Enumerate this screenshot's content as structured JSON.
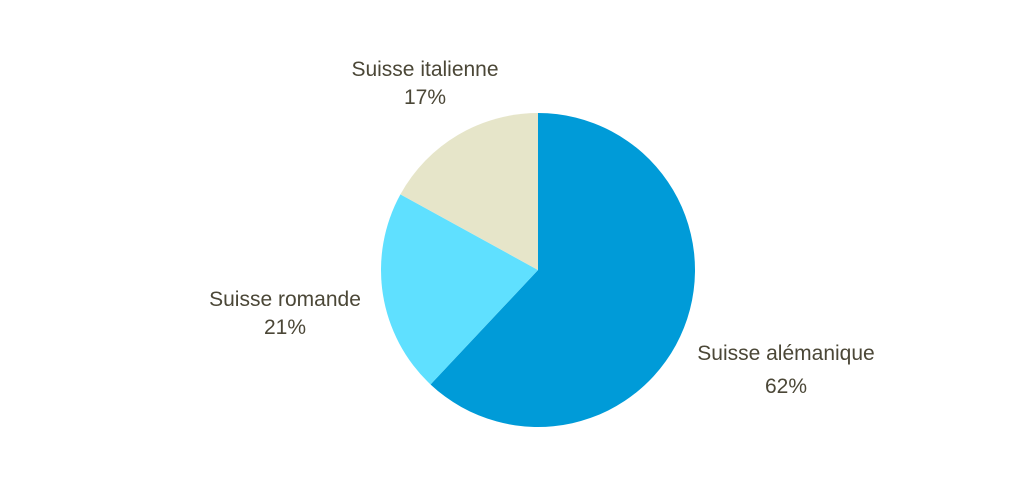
{
  "chart_data": {
    "type": "pie",
    "title": "",
    "categories": [
      "Suisse alémanique",
      "Suisse romande",
      "Suisse italienne"
    ],
    "values": [
      62,
      21,
      17
    ],
    "value_labels": [
      "62%",
      "21%",
      "17%"
    ],
    "colors": [
      "#009bd8",
      "#5fe0ff",
      "#e6e5c9"
    ],
    "start_angle_deg": 0,
    "direction": "clockwise",
    "legend": "none",
    "data_labels": "outside"
  }
}
